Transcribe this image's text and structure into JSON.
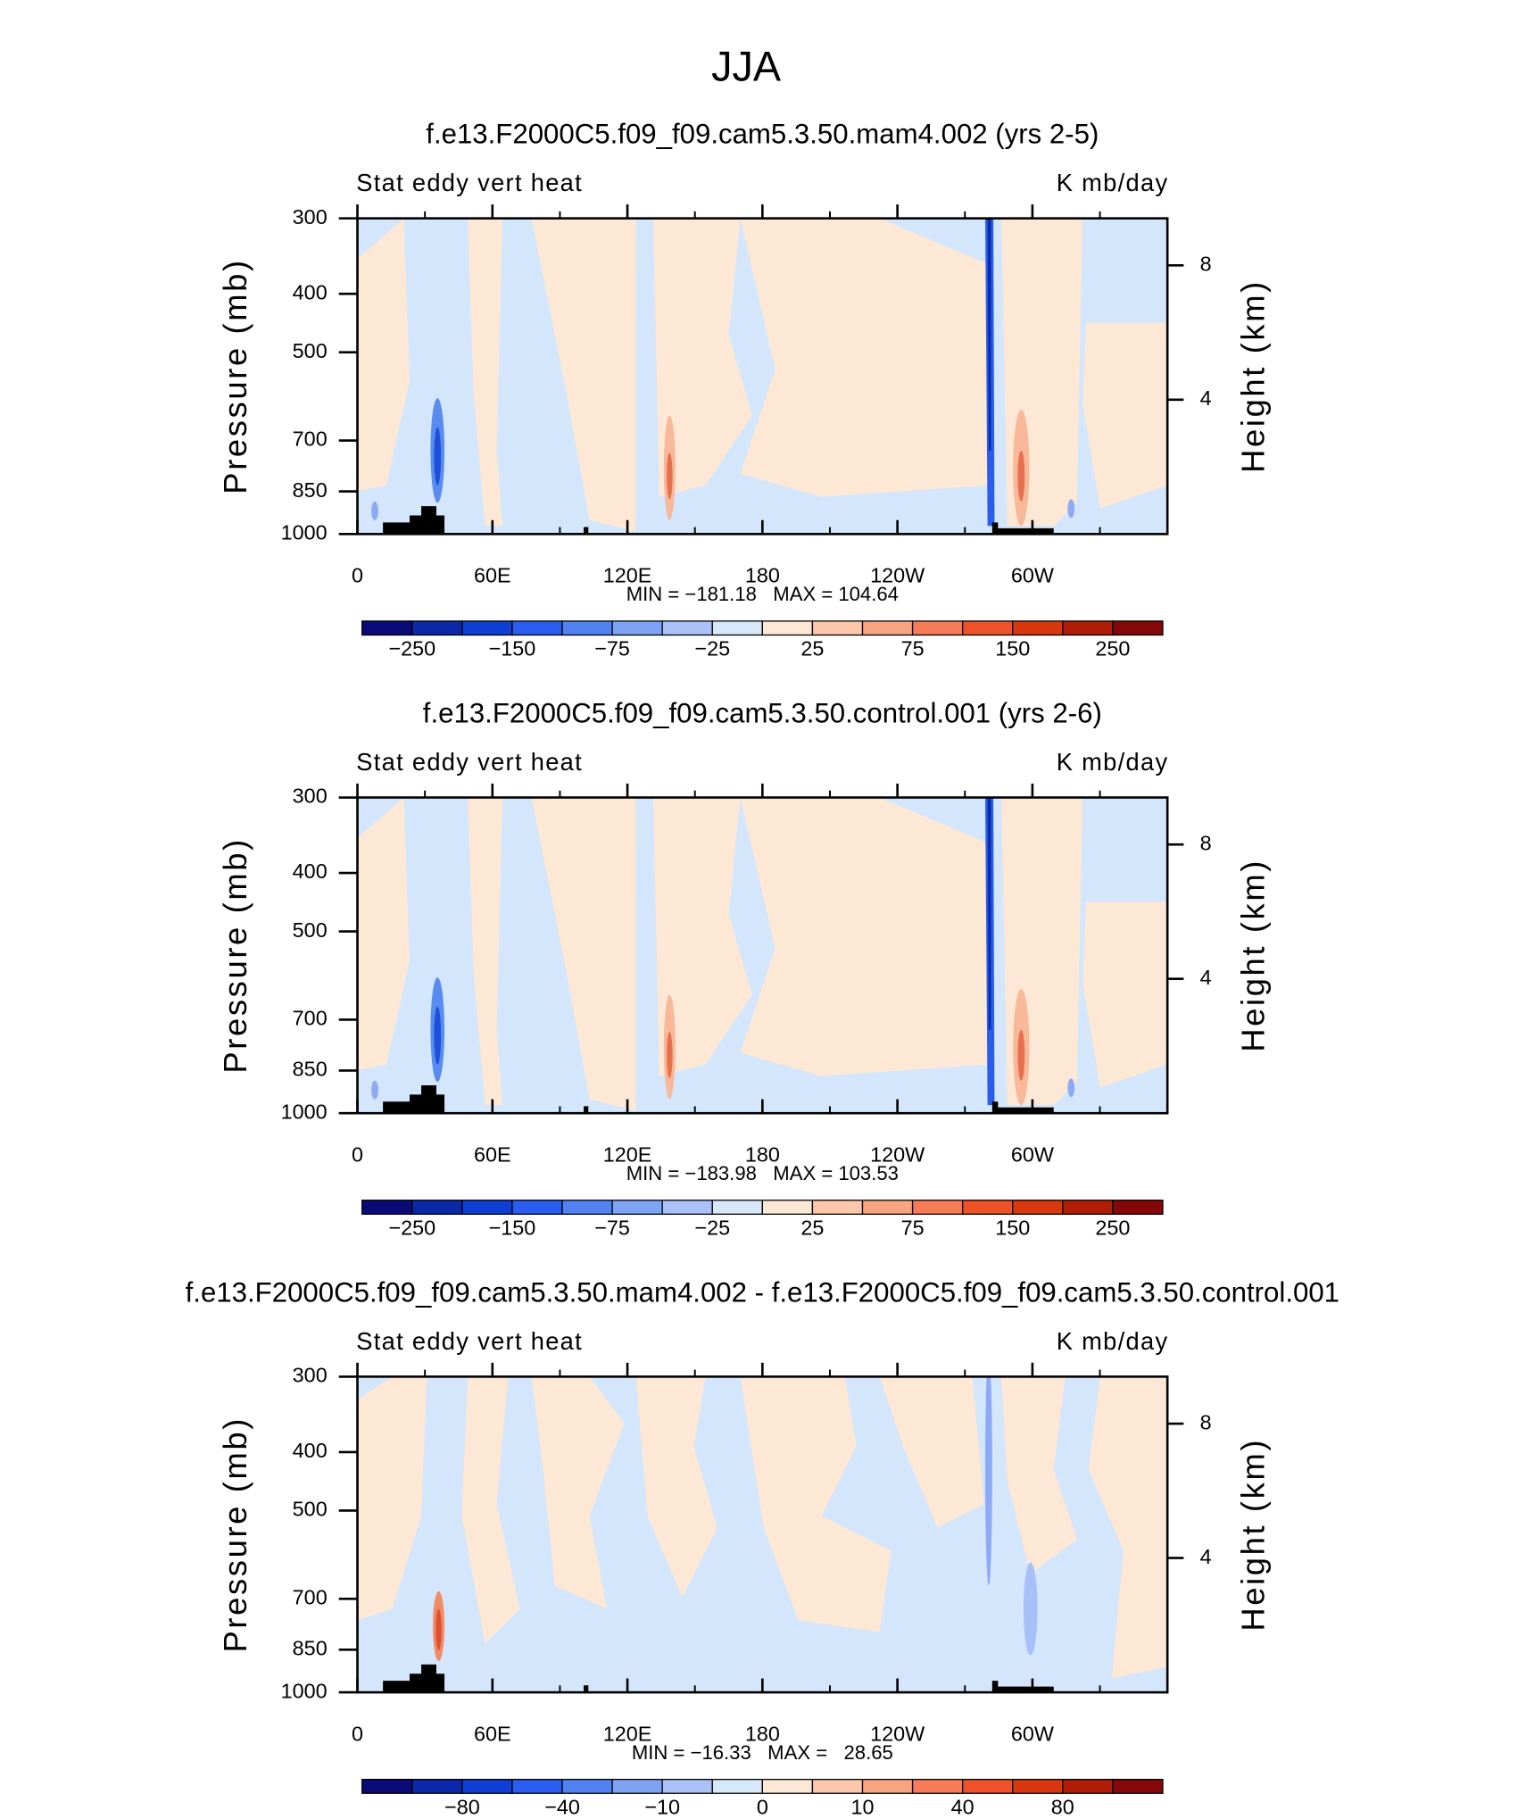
{
  "title": "JJA",
  "chart_data": [
    {
      "type": "contour",
      "title": "f.e13.F2000C5.f09_f09.cam5.3.50.mam4.002 (yrs 2-5)",
      "left_label": "Stat eddy vert heat",
      "right_label": "K mb/day",
      "ylabel": "Pressure (mb)",
      "y2label": "Height (km)",
      "xlim": [
        0,
        360
      ],
      "xticks": [
        0,
        {
          "value": 60,
          "label": "60E"
        },
        {
          "value": 120,
          "label": "120E"
        },
        180,
        {
          "value": 240,
          "label": "120W"
        },
        {
          "value": 300,
          "label": "60W"
        }
      ],
      "xminorticks": [
        30,
        90,
        150,
        210,
        270,
        330
      ],
      "ylim": [
        1000,
        300
      ],
      "ylog": true,
      "yticks": [
        300,
        400,
        500,
        700,
        850,
        1000
      ],
      "y2lim": [
        0,
        9.4
      ],
      "y2ticks": [
        8,
        4
      ],
      "stats": "MIN = −181.18   MAX = 104.64",
      "colorbar": {
        "colors": [
          "#0a0a78",
          "#0a28a8",
          "#0f3ed2",
          "#2a5ef0",
          "#5282f2",
          "#7ea2f4",
          "#aac2f8",
          "#d6e8fa",
          "#fde8d6",
          "#fcc8ac",
          "#f9a480",
          "#f57c56",
          "#ee5228",
          "#d8380e",
          "#b01e08",
          "#840808"
        ],
        "labels": [
          null,
          {
            "value": -250,
            "label": "−250"
          },
          null,
          {
            "value": -150,
            "label": "−150"
          },
          null,
          {
            "value": -75,
            "label": "−75"
          },
          null,
          {
            "value": -25,
            "label": "−25"
          },
          null,
          25,
          null,
          75,
          null,
          150,
          null,
          250,
          null
        ]
      }
    },
    {
      "type": "contour",
      "title": "f.e13.F2000C5.f09_f09.cam5.3.50.control.001 (yrs 2-6)",
      "left_label": "Stat eddy vert heat",
      "right_label": "K mb/day",
      "ylabel": "Pressure (mb)",
      "y2label": "Height (km)",
      "xlim": [
        0,
        360
      ],
      "xticks": [
        0,
        {
          "value": 60,
          "label": "60E"
        },
        {
          "value": 120,
          "label": "120E"
        },
        180,
        {
          "value": 240,
          "label": "120W"
        },
        {
          "value": 300,
          "label": "60W"
        }
      ],
      "xminorticks": [
        30,
        90,
        150,
        210,
        270,
        330
      ],
      "ylim": [
        1000,
        300
      ],
      "ylog": true,
      "yticks": [
        300,
        400,
        500,
        700,
        850,
        1000
      ],
      "y2lim": [
        0,
        9.4
      ],
      "y2ticks": [
        8,
        4
      ],
      "stats": "MIN = −183.98   MAX = 103.53",
      "colorbar": {
        "colors": [
          "#0a0a78",
          "#0a28a8",
          "#0f3ed2",
          "#2a5ef0",
          "#5282f2",
          "#7ea2f4",
          "#aac2f8",
          "#d6e8fa",
          "#fde8d6",
          "#fcc8ac",
          "#f9a480",
          "#f57c56",
          "#ee5228",
          "#d8380e",
          "#b01e08",
          "#840808"
        ],
        "labels": [
          null,
          {
            "value": -250,
            "label": "−250"
          },
          null,
          {
            "value": -150,
            "label": "−150"
          },
          null,
          {
            "value": -75,
            "label": "−75"
          },
          null,
          {
            "value": -25,
            "label": "−25"
          },
          null,
          25,
          null,
          75,
          null,
          150,
          null,
          250,
          null
        ]
      }
    },
    {
      "type": "contour",
      "title": "f.e13.F2000C5.f09_f09.cam5.3.50.mam4.002 - f.e13.F2000C5.f09_f09.cam5.3.50.control.001",
      "left_label": "Stat eddy vert heat",
      "right_label": "K mb/day",
      "ylabel": "Pressure (mb)",
      "y2label": "Height (km)",
      "xlim": [
        0,
        360
      ],
      "xticks": [
        0,
        {
          "value": 60,
          "label": "60E"
        },
        {
          "value": 120,
          "label": "120E"
        },
        180,
        {
          "value": 240,
          "label": "120W"
        },
        {
          "value": 300,
          "label": "60W"
        }
      ],
      "xminorticks": [
        30,
        90,
        150,
        210,
        270,
        330
      ],
      "ylim": [
        1000,
        300
      ],
      "ylog": true,
      "yticks": [
        300,
        400,
        500,
        700,
        850,
        1000
      ],
      "y2lim": [
        0,
        9.4
      ],
      "y2ticks": [
        8,
        4
      ],
      "stats": "MIN = −16.33   MAX =   28.65",
      "colorbar": {
        "colors": [
          "#0a0a78",
          "#0a28a8",
          "#0f3ed2",
          "#2a5ef0",
          "#5282f2",
          "#7ea2f4",
          "#aac2f8",
          "#d6e8fa",
          "#fde8d6",
          "#fcc8ac",
          "#f9a480",
          "#f57c56",
          "#ee5228",
          "#d8380e",
          "#b01e08",
          "#840808"
        ],
        "labels": [
          null,
          null,
          {
            "value": -80,
            "label": "−80"
          },
          null,
          {
            "value": -40,
            "label": "−40"
          },
          null,
          {
            "value": -10,
            "label": "−10"
          },
          null,
          0,
          null,
          10,
          null,
          40,
          null,
          80,
          null,
          null
        ]
      }
    }
  ]
}
